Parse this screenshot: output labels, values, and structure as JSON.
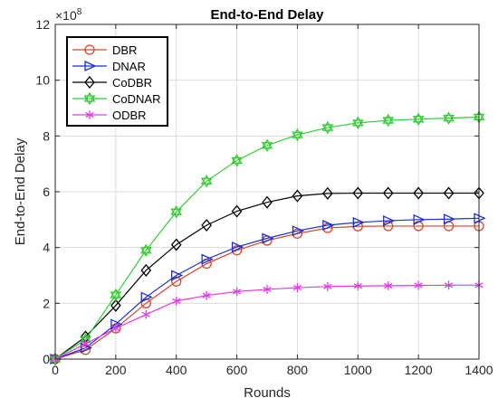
{
  "chart_data": {
    "type": "line",
    "title": "End-to-End Delay",
    "xlabel": "Rounds",
    "ylabel": "End-to-End Delay",
    "y_exponent_label": "×10",
    "y_exponent": "8",
    "xlim": [
      0,
      1400
    ],
    "ylim": [
      0,
      12
    ],
    "xticks": [
      0,
      200,
      400,
      600,
      800,
      1000,
      1200,
      1400
    ],
    "yticks": [
      0,
      2,
      4,
      6,
      8,
      10,
      12
    ],
    "grid": true,
    "legend_position": "top-left",
    "x": [
      0,
      100,
      200,
      300,
      400,
      500,
      600,
      700,
      800,
      900,
      1000,
      1100,
      1200,
      1300,
      1400
    ],
    "series": [
      {
        "name": "DBR",
        "color": "#d9442a",
        "marker": "circle",
        "values": [
          0,
          0.33,
          1.1,
          2.0,
          2.78,
          3.42,
          3.9,
          4.25,
          4.5,
          4.7,
          4.76,
          4.77,
          4.77,
          4.77,
          4.77
        ]
      },
      {
        "name": "DNAR",
        "color": "#1a2fd6",
        "marker": "triangle-right",
        "values": [
          0,
          0.4,
          1.25,
          2.22,
          3.0,
          3.58,
          4.02,
          4.33,
          4.6,
          4.8,
          4.9,
          4.96,
          5.0,
          5.02,
          5.05
        ]
      },
      {
        "name": "CoDBR",
        "color": "#000000",
        "marker": "diamond",
        "values": [
          0,
          0.8,
          1.92,
          3.18,
          4.1,
          4.8,
          5.3,
          5.62,
          5.85,
          5.94,
          5.95,
          5.95,
          5.95,
          5.95,
          5.95
        ]
      },
      {
        "name": "CoDNAR",
        "color": "#33cc33",
        "marker": "hexagram",
        "values": [
          0,
          0.7,
          2.3,
          3.9,
          5.28,
          6.38,
          7.12,
          7.66,
          8.04,
          8.3,
          8.47,
          8.56,
          8.6,
          8.64,
          8.68
        ]
      },
      {
        "name": "ODBR",
        "color": "#e63be6",
        "marker": "asterisk",
        "values": [
          0,
          0.55,
          1.1,
          1.6,
          2.08,
          2.28,
          2.42,
          2.5,
          2.56,
          2.6,
          2.62,
          2.63,
          2.64,
          2.65,
          2.65
        ]
      }
    ]
  }
}
